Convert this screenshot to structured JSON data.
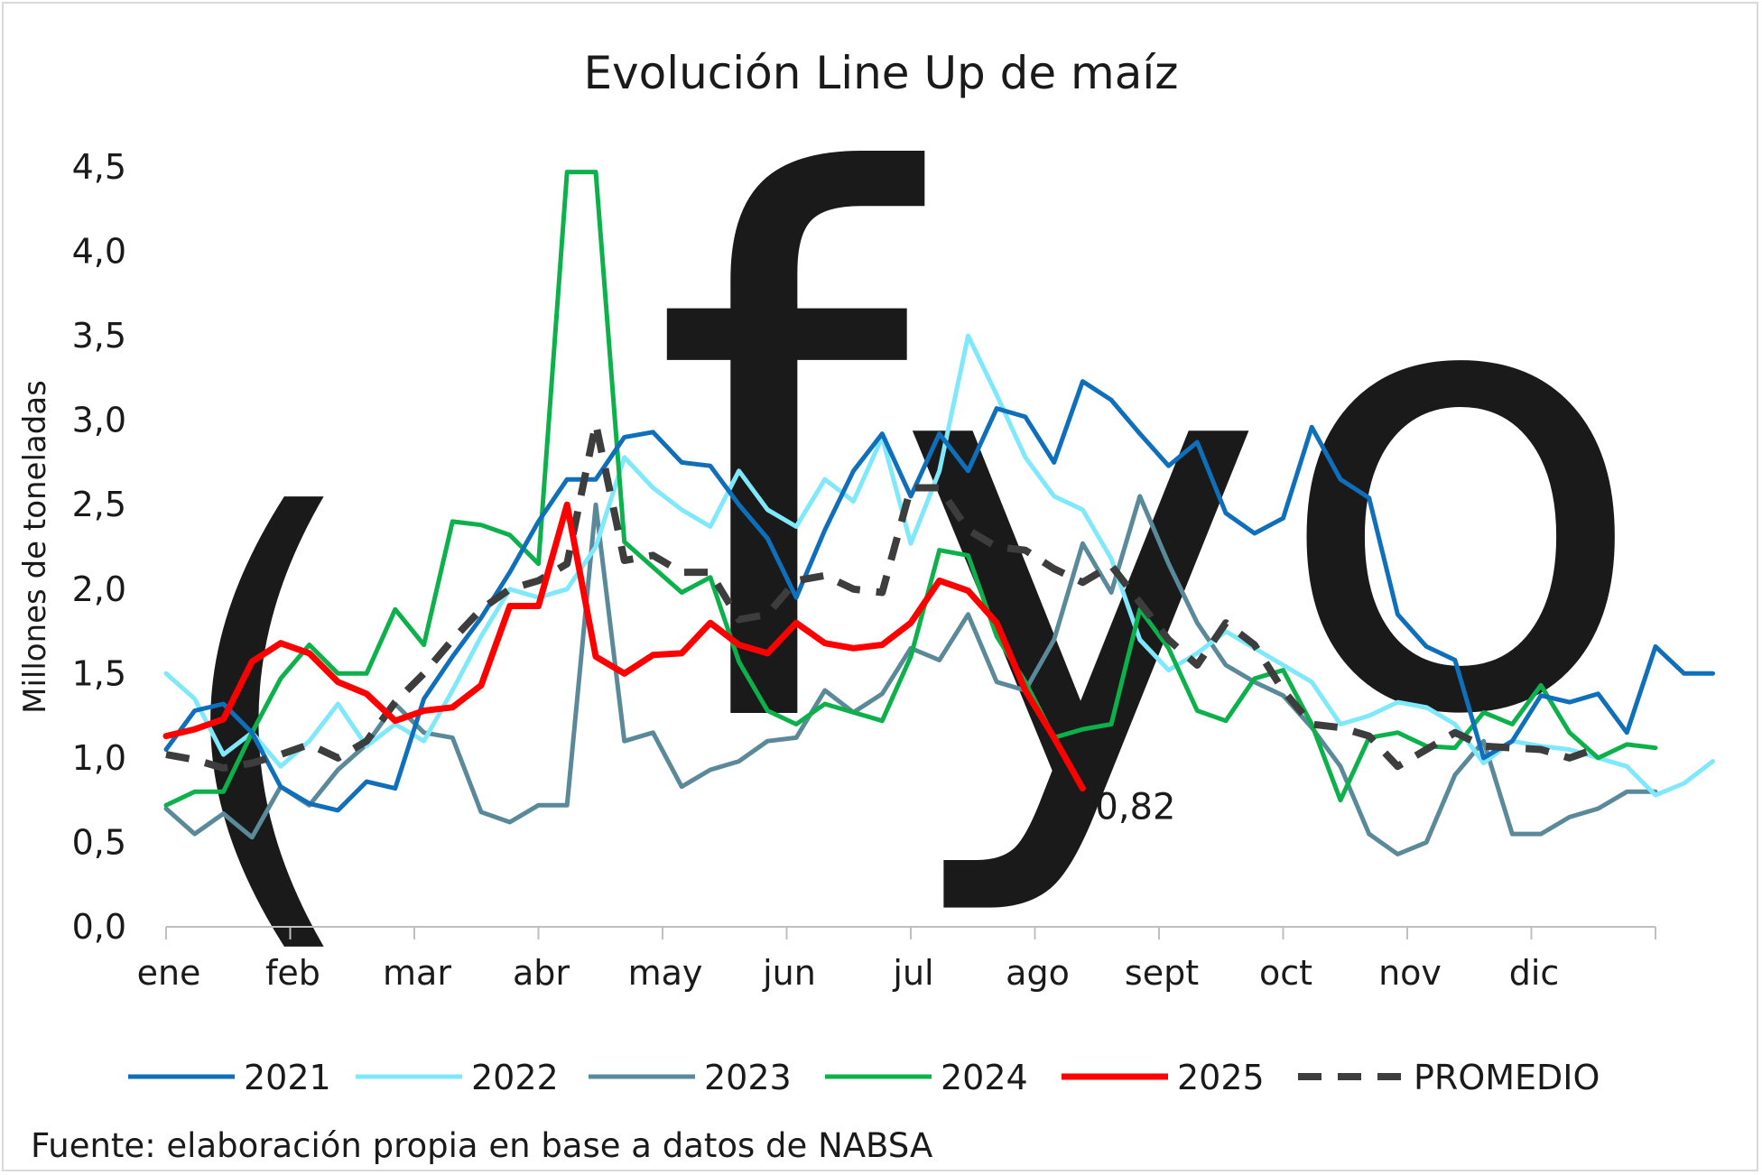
{
  "chart_data": {
    "type": "line",
    "title": "Evolución Line Up de maíz",
    "ylabel": "Millones de toneladas",
    "xlabel": "",
    "ylim": [
      0,
      4.5
    ],
    "yticks": [
      "0,0",
      "0,5",
      "1,0",
      "1,5",
      "2,0",
      "2,5",
      "3,0",
      "3,5",
      "4,0",
      "4,5"
    ],
    "months": [
      "ene",
      "feb",
      "mar",
      "abr",
      "may",
      "jun",
      "jul",
      "ago",
      "sept",
      "oct",
      "nov",
      "dic"
    ],
    "weeks": 52,
    "grid": false,
    "legend_position": "bottom",
    "watermark": "fyo",
    "source": "Fuente: elaboración propia en base a datos de NABSA",
    "annotation": {
      "text": "0,82",
      "series": "2025"
    },
    "series": [
      {
        "name": "2021",
        "color": "#0f6fba",
        "dash": "solid",
        "width": 5,
        "values": [
          1.05,
          1.28,
          1.32,
          1.15,
          0.83,
          0.73,
          0.69,
          0.86,
          0.82,
          1.35,
          1.6,
          1.83,
          2.1,
          2.4,
          2.65,
          2.65,
          2.9,
          2.93,
          2.75,
          2.73,
          2.5,
          2.3,
          1.95,
          2.35,
          2.7,
          2.92,
          2.55,
          2.92,
          2.7,
          3.07,
          3.02,
          2.75,
          3.23,
          3.12,
          2.92,
          2.73,
          2.87,
          2.45,
          2.33,
          2.42,
          2.96,
          2.65,
          2.54,
          1.85,
          1.66,
          1.58,
          1.0,
          1.1,
          1.37,
          1.33,
          1.38,
          1.15,
          1.66,
          1.5,
          1.5
        ]
      },
      {
        "name": "2022",
        "color": "#7fe9fb",
        "dash": "solid",
        "width": 5,
        "values": [
          1.5,
          1.35,
          1.02,
          1.15,
          0.95,
          1.1,
          1.32,
          1.07,
          1.2,
          1.1,
          1.4,
          1.72,
          2.0,
          1.95,
          2.0,
          2.25,
          2.78,
          2.6,
          2.47,
          2.37,
          2.7,
          2.47,
          2.37,
          2.65,
          2.52,
          2.9,
          2.27,
          2.7,
          3.5,
          3.15,
          2.78,
          2.55,
          2.47,
          2.18,
          1.7,
          1.52,
          1.62,
          1.75,
          1.65,
          1.55,
          1.45,
          1.2,
          1.25,
          1.33,
          1.3,
          1.2,
          0.97,
          1.1,
          1.07,
          1.05,
          1.0,
          0.95,
          0.78,
          0.85,
          0.98
        ]
      },
      {
        "name": "2023",
        "color": "#5a8a99",
        "dash": "solid",
        "width": 5,
        "values": [
          0.7,
          0.55,
          0.67,
          0.53,
          0.83,
          0.72,
          0.93,
          1.08,
          1.32,
          1.15,
          1.12,
          0.68,
          0.62,
          0.72,
          0.72,
          2.5,
          1.1,
          1.15,
          0.83,
          0.93,
          0.98,
          1.1,
          1.12,
          1.4,
          1.27,
          1.38,
          1.65,
          1.58,
          1.85,
          1.45,
          1.4,
          1.7,
          2.27,
          1.98,
          2.55,
          2.15,
          1.8,
          1.55,
          1.45,
          1.37,
          1.18,
          0.95,
          0.55,
          0.43,
          0.5,
          0.9,
          1.1,
          0.55,
          0.55,
          0.65,
          0.7,
          0.8,
          0.8
        ]
      },
      {
        "name": "2024",
        "color": "#0cb14b",
        "dash": "solid",
        "width": 5,
        "values": [
          0.72,
          0.8,
          0.8,
          1.15,
          1.47,
          1.67,
          1.5,
          1.5,
          1.88,
          1.67,
          2.4,
          2.38,
          2.32,
          2.15,
          4.47,
          4.47,
          2.28,
          2.13,
          1.98,
          2.07,
          1.57,
          1.28,
          1.2,
          1.32,
          1.27,
          1.22,
          1.6,
          2.23,
          2.2,
          1.72,
          1.45,
          1.12,
          1.17,
          1.2,
          1.88,
          1.65,
          1.28,
          1.22,
          1.47,
          1.52,
          1.2,
          0.75,
          1.12,
          1.15,
          1.07,
          1.06,
          1.27,
          1.2,
          1.43,
          1.15,
          1.0,
          1.08,
          1.06
        ]
      },
      {
        "name": "2025",
        "color": "#ff0000",
        "dash": "solid",
        "width": 7,
        "values": [
          1.13,
          1.17,
          1.23,
          1.57,
          1.68,
          1.62,
          1.45,
          1.38,
          1.22,
          1.28,
          1.3,
          1.43,
          1.9,
          1.9,
          2.5,
          1.6,
          1.5,
          1.61,
          1.62,
          1.8,
          1.67,
          1.62,
          1.8,
          1.68,
          1.65,
          1.67,
          1.8,
          2.05,
          1.99,
          1.8,
          1.4,
          1.12,
          0.82
        ]
      },
      {
        "name": "PROMEDIO",
        "color": "#3d3d3d",
        "dash": "dashed",
        "width": 8,
        "values": [
          1.02,
          0.99,
          0.94,
          0.97,
          1.02,
          1.08,
          1.0,
          1.1,
          1.33,
          1.5,
          1.7,
          1.88,
          2.0,
          2.05,
          2.15,
          2.98,
          2.17,
          2.2,
          2.1,
          2.1,
          1.82,
          1.85,
          2.05,
          2.08,
          2.0,
          1.98,
          2.6,
          2.6,
          2.35,
          2.25,
          2.23,
          2.12,
          2.04,
          2.14,
          1.92,
          1.7,
          1.55,
          1.8,
          1.67,
          1.4,
          1.2,
          1.18,
          1.13,
          0.95,
          1.05,
          1.15,
          1.07,
          1.06,
          1.05,
          1.0,
          1.06
        ]
      }
    ]
  }
}
